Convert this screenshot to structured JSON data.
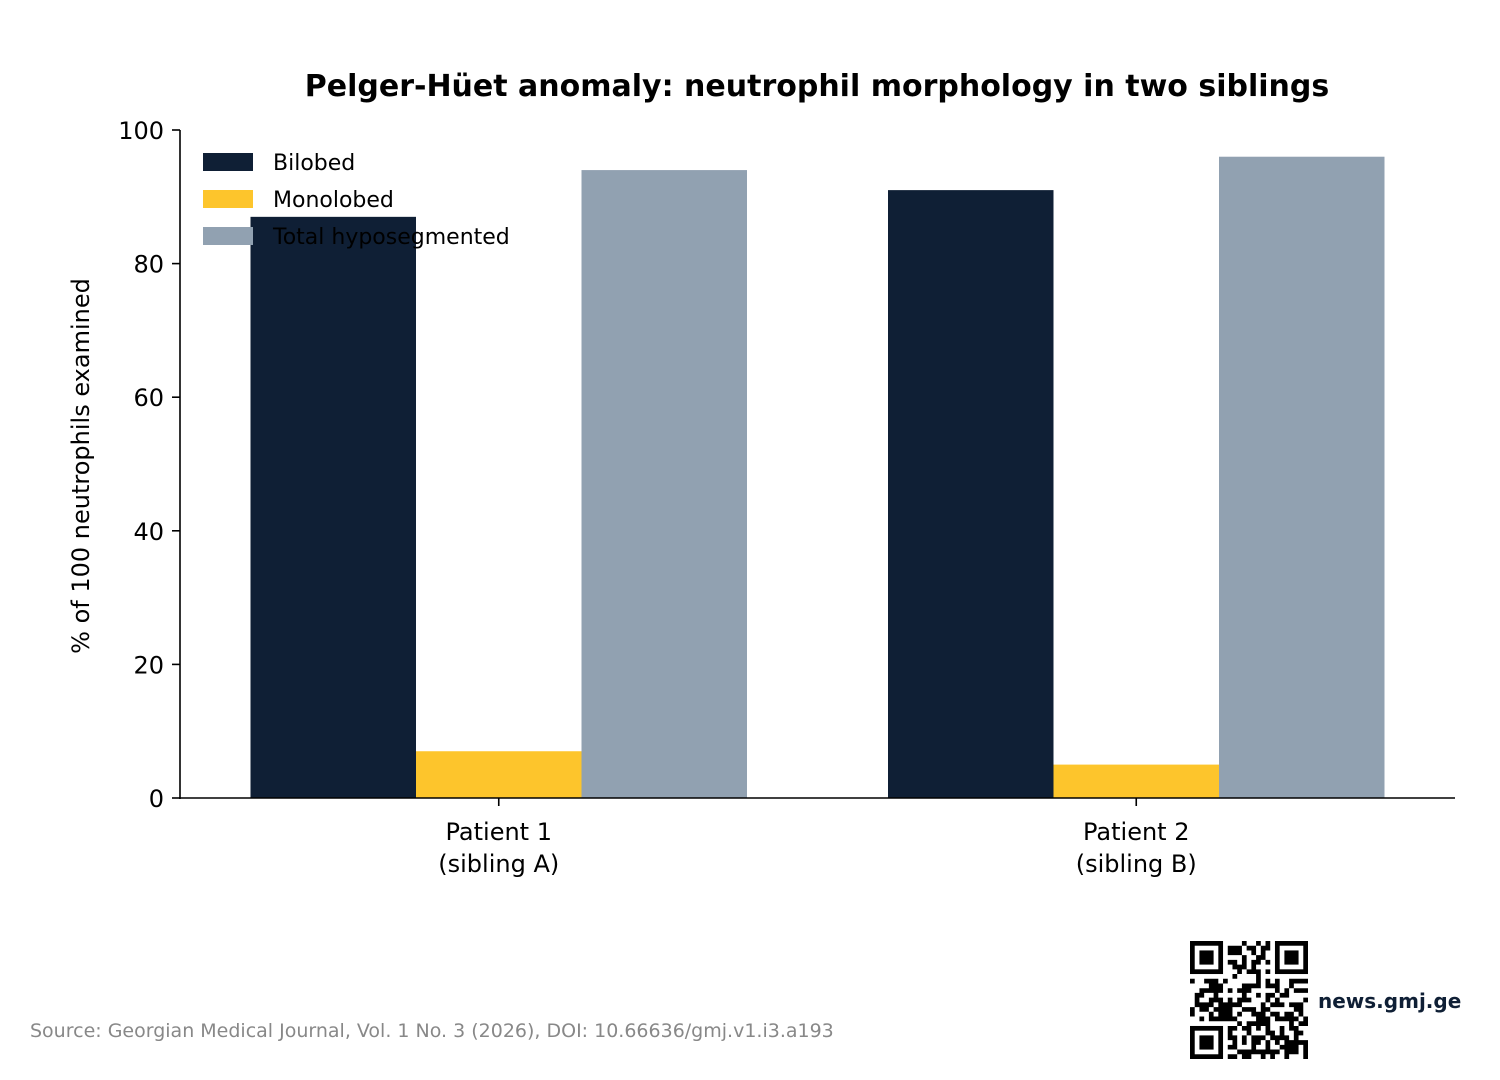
{
  "chart_data": {
    "type": "bar",
    "title": "Pelger-Hüet anomaly: neutrophil morphology in two siblings",
    "ylabel": "% of 100 neutrophils examined",
    "xlabel": "",
    "categories": [
      [
        "Patient 1",
        "(sibling A)"
      ],
      [
        "Patient 2",
        "(sibling B)"
      ]
    ],
    "series": [
      {
        "name": "Bilobed",
        "values": [
          87,
          91
        ],
        "color": "#0f1f35"
      },
      {
        "name": "Monolobed",
        "values": [
          7,
          5
        ],
        "color": "#fdc52c"
      },
      {
        "name": "Total hyposegmented",
        "values": [
          94,
          96
        ],
        "color": "#91a1b1"
      }
    ],
    "ylim": [
      0,
      100
    ],
    "yticks": [
      0,
      20,
      40,
      60,
      80,
      100
    ],
    "grid": false,
    "legend_position": "top-left"
  },
  "footer": {
    "source": "Source: Georgian Medical Journal, Vol. 1 No. 3 (2026), DOI: 10.66636/gmj.v1.i3.a193",
    "brand": "news.gmj.ge",
    "qr_icon": "qr-code-icon"
  }
}
